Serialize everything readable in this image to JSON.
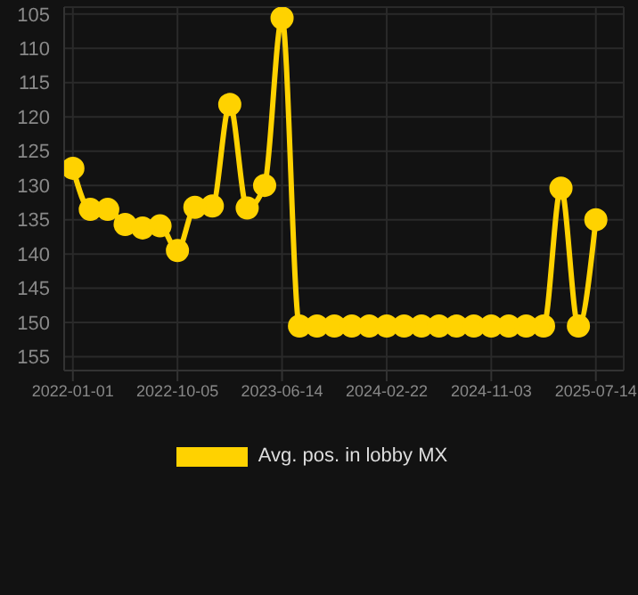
{
  "chart_data": {
    "type": "line",
    "categories": [
      "2022-01-01",
      null,
      null,
      null,
      null,
      null,
      "2022-10-05",
      null,
      null,
      null,
      null,
      null,
      "2023-06-14",
      null,
      null,
      null,
      null,
      null,
      "2024-02-22",
      null,
      null,
      null,
      null,
      null,
      "2024-11-03",
      null,
      null,
      null,
      null,
      null,
      "2025-07-14"
    ],
    "series": [
      {
        "name": "Avg. pos. in lobby MX",
        "color": "#ffd200",
        "values": [
          127.5,
          133.5,
          133.5,
          135.7,
          136.2,
          135.9,
          139.5,
          133.2,
          133,
          118.2,
          133.3,
          130,
          105.6,
          150.5,
          150.5,
          150.5,
          150.5,
          150.5,
          150.5,
          150.5,
          150.5,
          150.5,
          150.5,
          150.5,
          150.5,
          150.5,
          150.5,
          150.5,
          130.4,
          150.5,
          135
        ]
      }
    ],
    "ylim": [
      157,
      104
    ],
    "yticks": [
      105,
      110,
      115,
      120,
      125,
      130,
      135,
      140,
      145,
      150,
      155
    ],
    "grid": true,
    "legend": "bottom",
    "marker": "circle",
    "line_style": "solid"
  }
}
